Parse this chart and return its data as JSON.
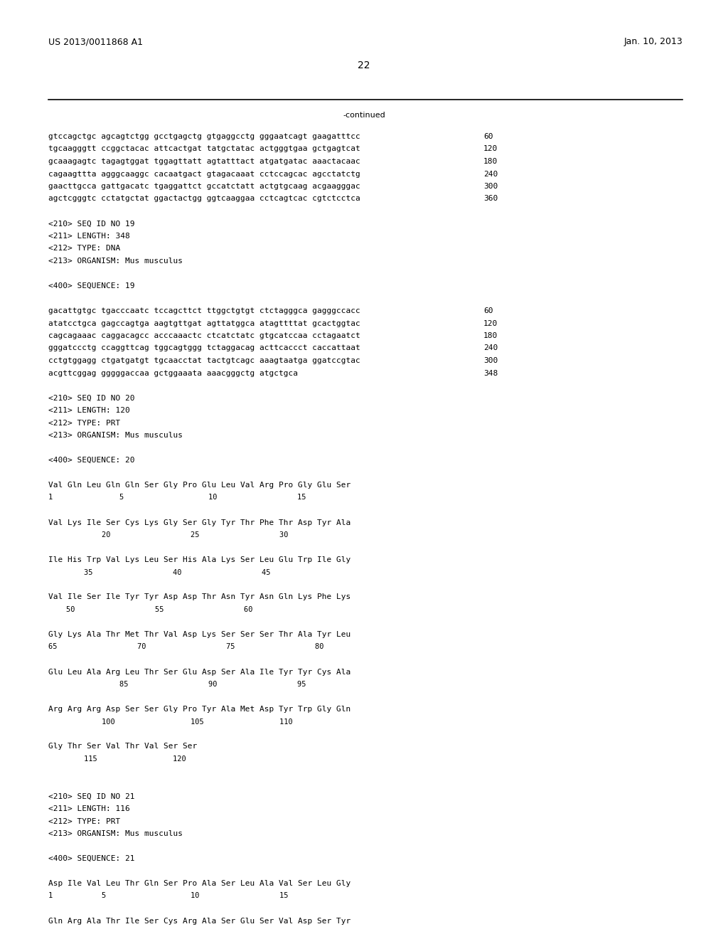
{
  "background_color": "#ffffff",
  "header_left": "US 2013/0011868 A1",
  "header_right": "Jan. 10, 2013",
  "page_number": "22",
  "continued_label": "-continued",
  "content_lines": [
    {
      "text": "gtccagctgc agcagtctgg gcctgagctg gtgaggcctg gggaatcagt gaagatttcc",
      "num": "60",
      "type": "seq"
    },
    {
      "text": "tgcaagggtt ccggctacac attcactgat tatgctatac actgggtgaa gctgagtcat",
      "num": "120",
      "type": "seq"
    },
    {
      "text": "gcaaagagtc tagagtggat tggagttatt agtatttact atgatgatac aaactacaac",
      "num": "180",
      "type": "seq"
    },
    {
      "text": "cagaagttta agggcaaggc cacaatgact gtagacaaat cctccagcac agcctatctg",
      "num": "240",
      "type": "seq"
    },
    {
      "text": "gaacttgcca gattgacatc tgaggattct gccatctatt actgtgcaag acgaagggac",
      "num": "300",
      "type": "seq"
    },
    {
      "text": "agctcgggtc cctatgctat ggactactgg ggtcaaggaa cctcagtcac cgtctcctca",
      "num": "360",
      "type": "seq"
    },
    {
      "text": "",
      "num": "",
      "type": "blank_large"
    },
    {
      "text": "<210> SEQ ID NO 19",
      "num": "",
      "type": "meta"
    },
    {
      "text": "<211> LENGTH: 348",
      "num": "",
      "type": "meta"
    },
    {
      "text": "<212> TYPE: DNA",
      "num": "",
      "type": "meta"
    },
    {
      "text": "<213> ORGANISM: Mus musculus",
      "num": "",
      "type": "meta"
    },
    {
      "text": "",
      "num": "",
      "type": "blank_large"
    },
    {
      "text": "<400> SEQUENCE: 19",
      "num": "",
      "type": "meta"
    },
    {
      "text": "",
      "num": "",
      "type": "blank_large"
    },
    {
      "text": "gacattgtgc tgacccaatc tccagcttct ttggctgtgt ctctagggca gagggccacc",
      "num": "60",
      "type": "seq"
    },
    {
      "text": "atatcctgca gagccagtga aagtgttgat agttatggca atagttttat gcactggtac",
      "num": "120",
      "type": "seq"
    },
    {
      "text": "cagcagaaac caggacagcc acccaaactc ctcatctatc gtgcatccaa cctagaatct",
      "num": "180",
      "type": "seq"
    },
    {
      "text": "gggatccctg ccaggttcag tggcagtggg tctaggacag acttcaccct caccattaat",
      "num": "240",
      "type": "seq"
    },
    {
      "text": "cctgtggagg ctgatgatgt tgcaacctat tactgtcagc aaagtaatga ggatccgtac",
      "num": "300",
      "type": "seq"
    },
    {
      "text": "acgttcggag gggggaccaa gctggaaata aaacgggctg atgctgca",
      "num": "348",
      "type": "seq"
    },
    {
      "text": "",
      "num": "",
      "type": "blank_large"
    },
    {
      "text": "<210> SEQ ID NO 20",
      "num": "",
      "type": "meta"
    },
    {
      "text": "<211> LENGTH: 120",
      "num": "",
      "type": "meta"
    },
    {
      "text": "<212> TYPE: PRT",
      "num": "",
      "type": "meta"
    },
    {
      "text": "<213> ORGANISM: Mus musculus",
      "num": "",
      "type": "meta"
    },
    {
      "text": "",
      "num": "",
      "type": "blank_large"
    },
    {
      "text": "<400> SEQUENCE: 20",
      "num": "",
      "type": "meta"
    },
    {
      "text": "",
      "num": "",
      "type": "blank_large"
    },
    {
      "text": "Val Gln Leu Gln Gln Ser Gly Pro Glu Leu Val Arg Pro Gly Glu Ser",
      "num": "",
      "type": "prt"
    },
    {
      "text": "1               5                   10                  15",
      "num": "",
      "type": "prt_num"
    },
    {
      "text": "",
      "num": "",
      "type": "blank_large"
    },
    {
      "text": "Val Lys Ile Ser Cys Lys Gly Ser Gly Tyr Thr Phe Thr Asp Tyr Ala",
      "num": "",
      "type": "prt"
    },
    {
      "text": "            20                  25                  30",
      "num": "",
      "type": "prt_num"
    },
    {
      "text": "",
      "num": "",
      "type": "blank_large"
    },
    {
      "text": "Ile His Trp Val Lys Leu Ser His Ala Lys Ser Leu Glu Trp Ile Gly",
      "num": "",
      "type": "prt"
    },
    {
      "text": "        35                  40                  45",
      "num": "",
      "type": "prt_num"
    },
    {
      "text": "",
      "num": "",
      "type": "blank_large"
    },
    {
      "text": "Val Ile Ser Ile Tyr Tyr Asp Asp Thr Asn Tyr Asn Gln Lys Phe Lys",
      "num": "",
      "type": "prt"
    },
    {
      "text": "    50                  55                  60",
      "num": "",
      "type": "prt_num"
    },
    {
      "text": "",
      "num": "",
      "type": "blank_large"
    },
    {
      "text": "Gly Lys Ala Thr Met Thr Val Asp Lys Ser Ser Ser Thr Ala Tyr Leu",
      "num": "",
      "type": "prt"
    },
    {
      "text": "65                  70                  75                  80",
      "num": "",
      "type": "prt_num"
    },
    {
      "text": "",
      "num": "",
      "type": "blank_large"
    },
    {
      "text": "Glu Leu Ala Arg Leu Thr Ser Glu Asp Ser Ala Ile Tyr Tyr Cys Ala",
      "num": "",
      "type": "prt"
    },
    {
      "text": "                85                  90                  95",
      "num": "",
      "type": "prt_num"
    },
    {
      "text": "",
      "num": "",
      "type": "blank_large"
    },
    {
      "text": "Arg Arg Arg Asp Ser Ser Gly Pro Tyr Ala Met Asp Tyr Trp Gly Gln",
      "num": "",
      "type": "prt"
    },
    {
      "text": "            100                 105                 110",
      "num": "",
      "type": "prt_num"
    },
    {
      "text": "",
      "num": "",
      "type": "blank_large"
    },
    {
      "text": "Gly Thr Ser Val Thr Val Ser Ser",
      "num": "",
      "type": "prt"
    },
    {
      "text": "        115                 120",
      "num": "",
      "type": "prt_num"
    },
    {
      "text": "",
      "num": "",
      "type": "blank_large"
    },
    {
      "text": "",
      "num": "",
      "type": "blank_large"
    },
    {
      "text": "<210> SEQ ID NO 21",
      "num": "",
      "type": "meta"
    },
    {
      "text": "<211> LENGTH: 116",
      "num": "",
      "type": "meta"
    },
    {
      "text": "<212> TYPE: PRT",
      "num": "",
      "type": "meta"
    },
    {
      "text": "<213> ORGANISM: Mus musculus",
      "num": "",
      "type": "meta"
    },
    {
      "text": "",
      "num": "",
      "type": "blank_large"
    },
    {
      "text": "<400> SEQUENCE: 21",
      "num": "",
      "type": "meta"
    },
    {
      "text": "",
      "num": "",
      "type": "blank_large"
    },
    {
      "text": "Asp Ile Val Leu Thr Gln Ser Pro Ala Ser Leu Ala Val Ser Leu Gly",
      "num": "",
      "type": "prt"
    },
    {
      "text": "1           5                   10                  15",
      "num": "",
      "type": "prt_num"
    },
    {
      "text": "",
      "num": "",
      "type": "blank_large"
    },
    {
      "text": "Gln Arg Ala Thr Ile Ser Cys Arg Ala Ser Glu Ser Val Asp Ser Tyr",
      "num": "",
      "type": "prt"
    }
  ],
  "mono_font": "DejaVu Sans Mono",
  "normal_font": "DejaVu Sans",
  "font_size": 8.0,
  "header_font_size": 9.0,
  "page_num_font_size": 10.0
}
